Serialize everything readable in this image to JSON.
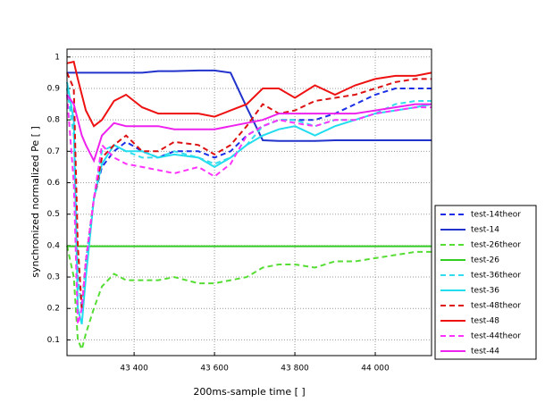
{
  "chart_data": {
    "type": "line",
    "x_label": "200ms-sample time [ ]",
    "y_label": "synchronized normalized Pe [ ]",
    "x": [
      43233,
      43250,
      43260,
      43270,
      43280,
      43300,
      43320,
      43350,
      43380,
      43420,
      43460,
      43500,
      43560,
      43600,
      43640,
      43680,
      43720,
      43760,
      43800,
      43850,
      43900,
      43950,
      44000,
      44050,
      44100,
      44140
    ],
    "xlim": [
      43233,
      44140
    ],
    "xticks": [
      {
        "value": 43400,
        "label": "43 400"
      },
      {
        "value": 43600,
        "label": "43 600"
      },
      {
        "value": 43800,
        "label": "43 800"
      },
      {
        "value": 44000,
        "label": "44 000"
      }
    ],
    "ylim": [
      0.05,
      1.025
    ],
    "yticks": [
      0.1,
      0.2,
      0.3,
      0.4,
      0.5,
      0.6,
      0.7,
      0.8,
      0.9,
      1
    ],
    "grid": true,
    "legend": "right",
    "series": [
      {
        "name": "test-14theor",
        "color": "#1a2ee6",
        "dashed": true,
        "values": [
          0.9,
          0.8,
          0.3,
          0.2,
          0.35,
          0.55,
          0.65,
          0.7,
          0.73,
          0.7,
          0.68,
          0.7,
          0.7,
          0.68,
          0.7,
          0.75,
          0.78,
          0.8,
          0.8,
          0.8,
          0.82,
          0.85,
          0.88,
          0.9,
          0.9,
          0.9
        ]
      },
      {
        "name": "test-14",
        "color": "#2233cc",
        "dashed": false,
        "values": [
          0.95,
          0.95,
          0.95,
          0.95,
          0.95,
          0.95,
          0.95,
          0.95,
          0.95,
          0.95,
          0.955,
          0.955,
          0.957,
          0.957,
          0.95,
          0.84,
          0.735,
          0.733,
          0.733,
          0.733,
          0.735,
          0.735,
          0.735,
          0.735,
          0.735,
          0.735
        ]
      },
      {
        "name": "test-26theor",
        "color": "#55dd33",
        "dashed": true,
        "values": [
          0.4,
          0.3,
          0.1,
          0.07,
          0.12,
          0.2,
          0.27,
          0.31,
          0.29,
          0.29,
          0.29,
          0.3,
          0.28,
          0.28,
          0.29,
          0.3,
          0.33,
          0.34,
          0.34,
          0.33,
          0.35,
          0.35,
          0.36,
          0.37,
          0.38,
          0.38
        ]
      },
      {
        "name": "test-26",
        "color": "#33cc22",
        "dashed": false,
        "values": [
          0.398,
          0.398,
          0.398,
          0.398,
          0.398,
          0.398,
          0.398,
          0.398,
          0.398,
          0.398,
          0.398,
          0.398,
          0.398,
          0.398,
          0.398,
          0.398,
          0.398,
          0.398,
          0.398,
          0.398,
          0.398,
          0.398,
          0.398,
          0.398,
          0.398,
          0.398
        ]
      },
      {
        "name": "test-36theor",
        "color": "#33ddee",
        "dashed": true,
        "values": [
          0.9,
          0.75,
          0.3,
          0.2,
          0.35,
          0.55,
          0.7,
          0.72,
          0.7,
          0.68,
          0.68,
          0.7,
          0.68,
          0.66,
          0.68,
          0.72,
          0.78,
          0.8,
          0.8,
          0.78,
          0.8,
          0.8,
          0.82,
          0.85,
          0.86,
          0.86
        ]
      },
      {
        "name": "test-36",
        "color": "#22ddee",
        "dashed": false,
        "values": [
          0.92,
          0.8,
          0.2,
          0.15,
          0.3,
          0.55,
          0.66,
          0.72,
          0.7,
          0.7,
          0.68,
          0.69,
          0.68,
          0.65,
          0.68,
          0.72,
          0.75,
          0.77,
          0.78,
          0.75,
          0.78,
          0.8,
          0.82,
          0.83,
          0.84,
          0.85
        ]
      },
      {
        "name": "test-48theor",
        "color": "#dd1111",
        "dashed": true,
        "values": [
          0.95,
          0.9,
          0.4,
          0.2,
          0.35,
          0.55,
          0.68,
          0.72,
          0.75,
          0.7,
          0.7,
          0.73,
          0.72,
          0.69,
          0.72,
          0.78,
          0.85,
          0.82,
          0.83,
          0.86,
          0.87,
          0.88,
          0.9,
          0.92,
          0.93,
          0.93
        ]
      },
      {
        "name": "test-48",
        "color": "#ee1111",
        "dashed": false,
        "values": [
          0.98,
          0.985,
          0.93,
          0.88,
          0.83,
          0.78,
          0.8,
          0.86,
          0.88,
          0.84,
          0.82,
          0.82,
          0.82,
          0.81,
          0.83,
          0.85,
          0.9,
          0.9,
          0.87,
          0.91,
          0.88,
          0.91,
          0.93,
          0.94,
          0.94,
          0.95
        ]
      },
      {
        "name": "test-44theor",
        "color": "#ff33ff",
        "dashed": true,
        "values": [
          0.88,
          0.6,
          0.15,
          0.2,
          0.35,
          0.55,
          0.72,
          0.68,
          0.66,
          0.65,
          0.64,
          0.63,
          0.65,
          0.62,
          0.66,
          0.75,
          0.78,
          0.8,
          0.79,
          0.78,
          0.8,
          0.8,
          0.82,
          0.83,
          0.84,
          0.84
        ]
      },
      {
        "name": "test-44",
        "color": "#ee22ee",
        "dashed": false,
        "values": [
          0.88,
          0.85,
          0.8,
          0.75,
          0.72,
          0.67,
          0.75,
          0.79,
          0.78,
          0.78,
          0.78,
          0.77,
          0.77,
          0.77,
          0.78,
          0.79,
          0.8,
          0.82,
          0.82,
          0.82,
          0.82,
          0.82,
          0.83,
          0.84,
          0.85,
          0.85
        ]
      }
    ]
  }
}
